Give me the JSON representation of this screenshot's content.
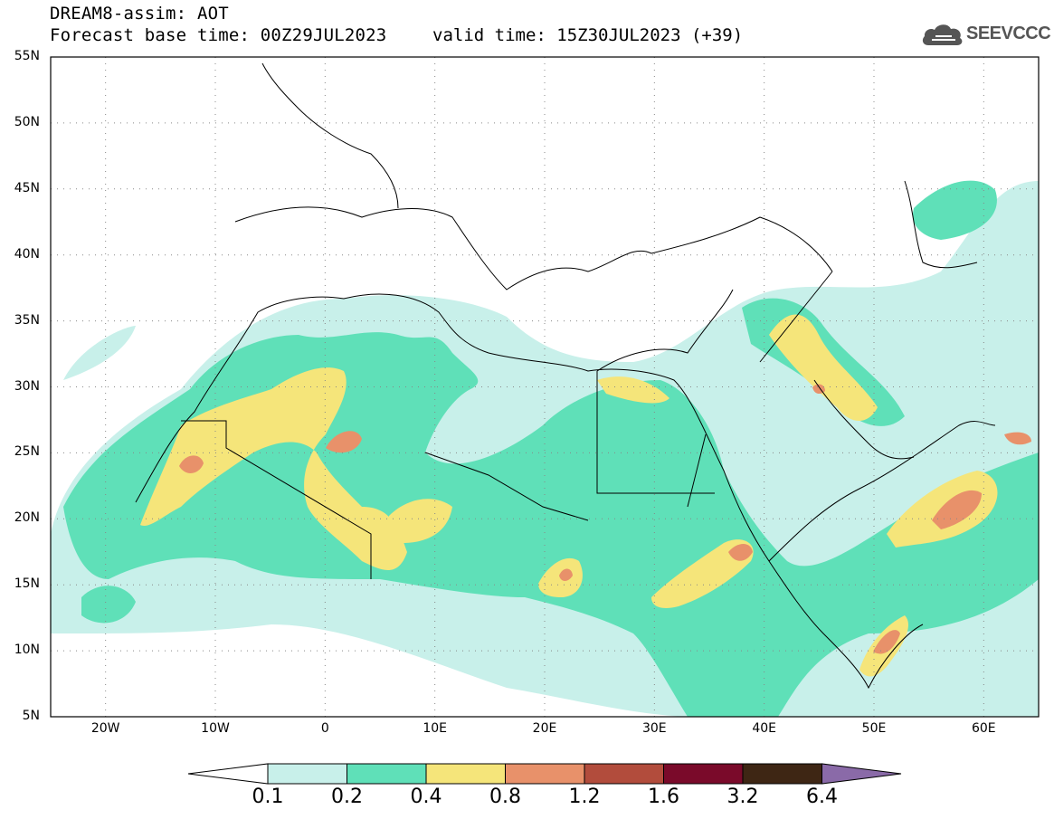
{
  "header": {
    "title": "DREAM8-assim: AOT",
    "forecast_base": "Forecast base time: 00Z29JUL2023",
    "valid_time": "valid time: 15Z30JUL2023 (+39)"
  },
  "logo": {
    "text": "SEEVCCC",
    "icon": "cloud-logo-icon"
  },
  "map": {
    "lat_labels": [
      "55N",
      "50N",
      "45N",
      "40N",
      "35N",
      "30N",
      "25N",
      "20N",
      "15N",
      "10N",
      "5N"
    ],
    "lon_labels": [
      "20W",
      "10W",
      "0",
      "10E",
      "20E",
      "30E",
      "40E",
      "50E",
      "60E"
    ],
    "lon_range": [
      -25,
      65
    ],
    "lat_range": [
      5,
      55
    ],
    "grid": "dotted"
  },
  "colorbar": {
    "levels": [
      "0.1",
      "0.2",
      "0.4",
      "0.8",
      "1.2",
      "1.6",
      "3.2",
      "6.4"
    ],
    "colors": [
      "#ffffff",
      "#c8f0ea",
      "#5fe0b8",
      "#f5e57a",
      "#e8916a",
      "#b24c3c",
      "#7a0a2a",
      "#3e2614",
      "#8a6aa8"
    ]
  }
}
